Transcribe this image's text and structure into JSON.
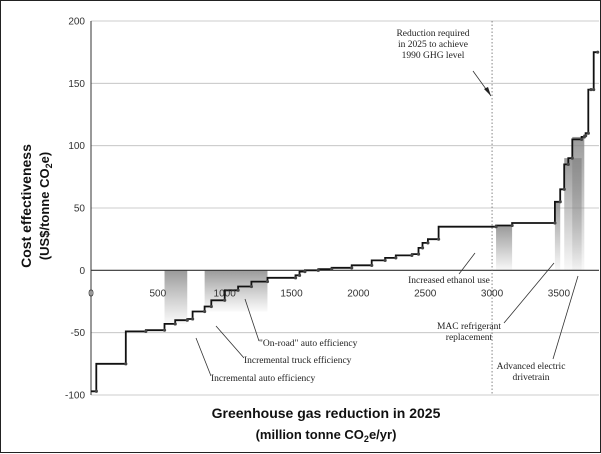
{
  "chart_data": {
    "type": "line",
    "xlabel_line1": "Greenhouse gas reduction in 2025",
    "xlabel_line2_pre": "(million tonne CO",
    "xlabel_line2_sub": "2",
    "xlabel_line2_post": "e/yr)",
    "ylabel_line1": "Cost effectiveness",
    "ylabel_line2_pre": "(US$/tonne CO",
    "ylabel_line2_sub": "2",
    "ylabel_line2_post": "e)",
    "xlim": [
      0,
      3800
    ],
    "ylim": [
      -100,
      200
    ],
    "x_ticks": [
      "0",
      "500",
      "1000",
      "1500",
      "2000",
      "2500",
      "3000",
      "3500"
    ],
    "x_tick_values": [
      0,
      500,
      1000,
      1500,
      2000,
      2500,
      3000,
      3500
    ],
    "y_ticks": [
      "200",
      "150",
      "100",
      "50",
      "0",
      "-50",
      "-100"
    ],
    "y_tick_values": [
      200,
      150,
      100,
      50,
      0,
      -50,
      -100
    ],
    "grid": "horizontal",
    "series": [
      {
        "x": [
          0,
          40,
          40,
          260,
          260,
          410,
          410,
          550,
          550,
          630,
          630,
          720,
          720,
          760,
          760,
          850,
          850,
          900,
          900,
          1000,
          1000,
          1100,
          1100,
          1200,
          1200,
          1320,
          1320,
          1530,
          1530,
          1560,
          1560,
          1600,
          1600,
          1700,
          1700,
          1800,
          1800,
          1950,
          1950,
          2100,
          2100,
          2200,
          2200,
          2280,
          2280,
          2400,
          2400,
          2450,
          2450,
          2480,
          2480,
          2520,
          2520,
          2600,
          2600,
          3030,
          3030,
          3150,
          3150,
          3470,
          3470,
          3510,
          3510,
          3540,
          3540,
          3570,
          3570,
          3600,
          3600,
          3670,
          3670,
          3690,
          3690,
          3700,
          3700,
          3720,
          3720,
          3740,
          3740,
          3760,
          3760,
          3790
        ],
        "y": [
          -97,
          -97,
          -75,
          -75,
          -49,
          -49,
          -48,
          -48,
          -43,
          -43,
          -40,
          -40,
          -39,
          -39,
          -33,
          -33,
          -29,
          -29,
          -24,
          -24,
          -16,
          -16,
          -13,
          -13,
          -9,
          -9,
          -6,
          -6,
          -4,
          -4,
          -1,
          -1,
          0,
          0,
          1,
          1,
          2,
          2,
          4,
          4,
          8,
          8,
          10,
          10,
          12,
          12,
          13,
          13,
          18,
          18,
          22,
          22,
          25,
          25,
          35,
          35,
          36,
          36,
          38,
          38,
          55,
          55,
          65,
          65,
          85,
          85,
          90,
          90,
          105,
          105,
          107,
          107,
          108,
          108,
          110,
          110,
          145,
          145,
          145,
          145,
          175,
          175
        ]
      }
    ],
    "annotations": [
      {
        "lines": [
          "Reduction required",
          "in 2025 to achieve",
          "1990 GHG level"
        ]
      },
      {
        "lines": [
          "Increased ethanol use"
        ]
      },
      {
        "lines": [
          "MAC refrigerant",
          "replacement"
        ]
      },
      {
        "lines": [
          "Advanced electric",
          "drivetrain"
        ]
      },
      {
        "lines": [
          "\"On-road\" auto efficiency"
        ]
      },
      {
        "lines": [
          "Incremental truck efficiency"
        ]
      },
      {
        "lines": [
          "Incremental auto efficiency"
        ]
      }
    ],
    "reference_x": 3000
  }
}
